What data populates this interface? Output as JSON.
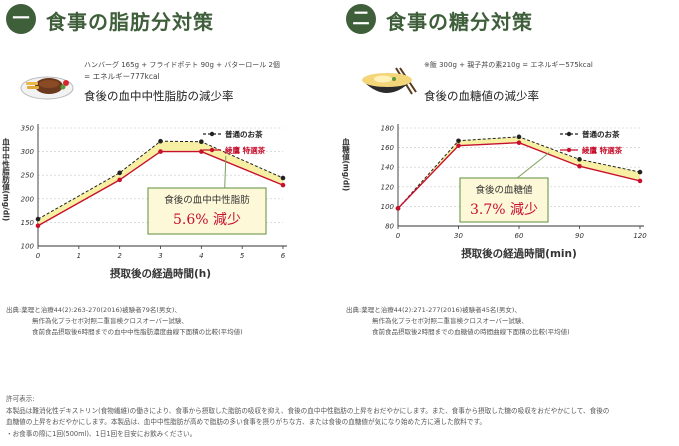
{
  "panels": [
    {
      "badge": "一",
      "heading": "食事の脂肪分対策",
      "meal_line1": "ハンバーグ 165g + フライドポテト 90g + バターロール 2個",
      "meal_line2": "= エネルギー777kcal",
      "subtitle": "食後の血中中性脂肪の減少率",
      "callout_title": "食後の血中中性脂肪",
      "callout_value": "5.6% 減少",
      "source_lines": [
        "出典:薬理と治療44(2):263-270(2016)被験者79名(男女)、",
        "無作為化プラセボ対照二重盲検クロスオーバー試験、",
        "食前食品摂取後6時間までの血中中性脂肪濃度曲線下面積の比較(平均値)"
      ]
    },
    {
      "badge": "二",
      "heading": "食事の糖分対策",
      "meal_line1": "※飯 300g + 親子丼の素210g = エネルギー575kcal",
      "meal_line2": "",
      "subtitle": "食後の血糖値の減少率",
      "callout_title": "食後の血糖値",
      "callout_value": "3.7% 減少",
      "source_lines": [
        "出典:薬理と治療44(2):271-277(2016)被験者45名(男女)、",
        "無作為化プラセボ対照二重盲検クロスオーバー試験、",
        "食前食品摂取後2時間までの血糖値の時間曲線下面積の比較(平均値)"
      ]
    }
  ],
  "notes": [
    "許可表示:",
    "本製品は難消化性デキストリン(食物繊維)の働きにより、食事から摂取した脂肪の吸収を抑え、食後の血中中性脂肪の上昇をおだやかにします。また、食事から摂取した糖の吸収をおだやかにして、食後の",
    "血糖値の上昇をおだやかにします。本製品は、血中中性脂肪が高めで脂肪の多い食事を摂りがちな方、または食後の血糖値が気になり始めた方に適した飲料です。",
    "・お食事の際に1回(500ml)、1日1回を目安にお飲みください。"
  ],
  "colors": {
    "brand_green": "#3f5f3b",
    "normal_tea": "#222222",
    "ayataka": "#c8102e",
    "fill": "#f6efa4",
    "callout_border": "#7aa05a"
  },
  "chart_data": [
    {
      "type": "line",
      "ylabel": "血中中性脂肪値(mg/dl)",
      "xlabel": "摂取後の経過時間(h)",
      "x": [
        0,
        2,
        3,
        4,
        6
      ],
      "xticks": [
        0,
        1,
        2,
        3,
        4,
        5,
        6
      ],
      "yticks": [
        100,
        150,
        200,
        250,
        300,
        350
      ],
      "xlim": [
        0,
        6
      ],
      "ylim": [
        100,
        350
      ],
      "series": [
        {
          "name": "普通のお茶",
          "values": [
            157,
            255,
            322,
            321,
            244
          ],
          "style": "dashed"
        },
        {
          "name": "綾鷹 特選茶",
          "values": [
            143,
            240,
            300,
            300,
            229
          ],
          "style": "solid"
        }
      ],
      "legend": "top-right",
      "grid": true
    },
    {
      "type": "line",
      "ylabel": "血糖値(mg/dl)",
      "xlabel": "摂取後の経過時間(min)",
      "x": [
        0,
        30,
        60,
        90,
        120
      ],
      "xticks": [
        0,
        30,
        60,
        90,
        120
      ],
      "yticks": [
        80,
        100,
        120,
        140,
        160,
        180
      ],
      "xlim": [
        0,
        120
      ],
      "ylim": [
        80,
        180
      ],
      "series": [
        {
          "name": "普通のお茶",
          "values": [
            98,
            167,
            171,
            148,
            135
          ],
          "style": "dashed"
        },
        {
          "name": "綾鷹 特選茶",
          "values": [
            98,
            162,
            165,
            141,
            126
          ],
          "style": "solid"
        }
      ],
      "legend": "top-right",
      "grid": true
    }
  ]
}
